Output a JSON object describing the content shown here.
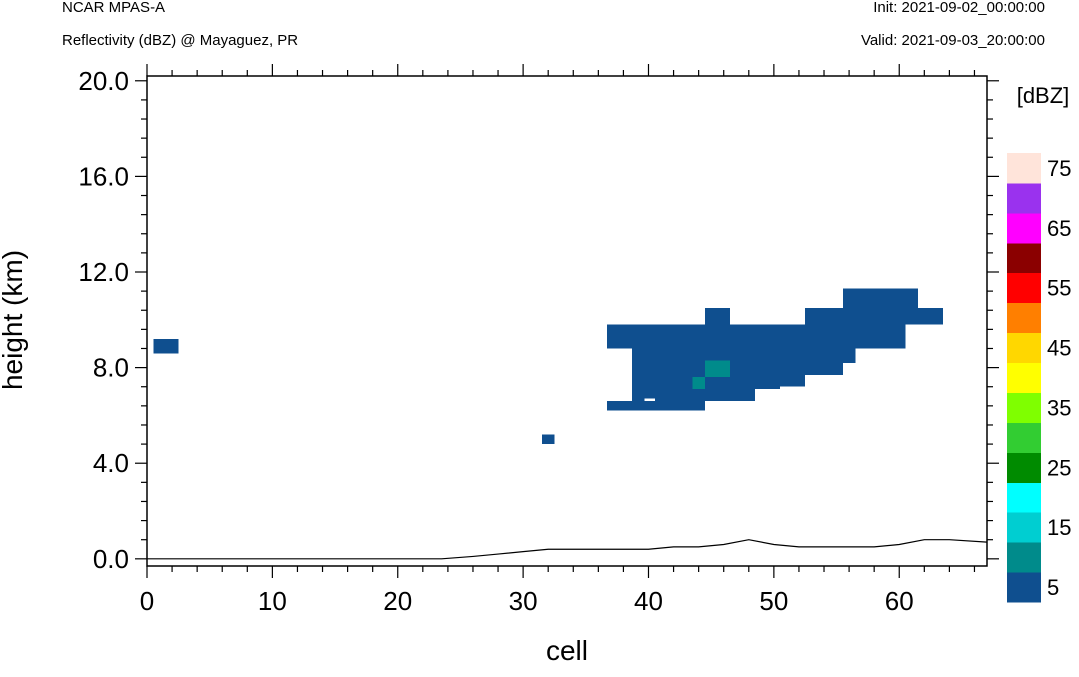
{
  "header": {
    "model": "NCAR MPAS-A",
    "field": "Reflectivity (dBZ) @ Mayaguez, PR",
    "init": "Init: 2021-09-02_00:00:00",
    "valid": "Valid: 2021-09-03_20:00:00"
  },
  "chart_data": {
    "type": "heatmap",
    "xlabel": "cell",
    "ylabel": "height (km)",
    "xlim": [
      0,
      67
    ],
    "ylim": [
      -0.3,
      20.2
    ],
    "xticks": [
      "0",
      "10",
      "20",
      "30",
      "40",
      "50",
      "60"
    ],
    "yticks": [
      "0.0",
      "4.0",
      "8.0",
      "12.0",
      "16.0",
      "20.0"
    ],
    "colorbar": {
      "unit": "[dBZ]",
      "labels": [
        "5",
        "15",
        "25",
        "35",
        "45",
        "55",
        "65",
        "75"
      ],
      "colors": [
        "#0f4f8f",
        "#008b8b",
        "#00ced1",
        "#00ffff",
        "#008b00",
        "#32cd32",
        "#7fff00",
        "#ffff00",
        "#ffd700",
        "#ff7f00",
        "#ff0000",
        "#8b0000",
        "#ff00ff",
        "#9a32ee",
        "#ffe4da"
      ]
    },
    "cells": [
      {
        "x0": 0.5,
        "x1": 2.5,
        "y0": 8.6,
        "y1": 9.2,
        "dbz": 5
      },
      {
        "x0": 31.5,
        "x1": 32.5,
        "y0": 4.8,
        "y1": 5.2,
        "dbz": 5
      },
      {
        "x0": 36.7,
        "x1": 40.5,
        "y0": 6.2,
        "y1": 6.6,
        "dbz": 5
      },
      {
        "x0": 40.5,
        "x1": 44.5,
        "y0": 6.2,
        "y1": 6.7,
        "dbz": 5
      },
      {
        "x0": 38.7,
        "x1": 39.7,
        "y0": 6.6,
        "y1": 8.8,
        "dbz": 5
      },
      {
        "x0": 36.7,
        "x1": 56.5,
        "y0": 8.8,
        "y1": 9.8,
        "dbz": 5
      },
      {
        "x0": 44.5,
        "x1": 46.5,
        "y0": 9.8,
        "y1": 10.5,
        "dbz": 5
      },
      {
        "x0": 52.5,
        "x1": 63.5,
        "y0": 9.8,
        "y1": 10.5,
        "dbz": 5
      },
      {
        "x0": 55.5,
        "x1": 61.5,
        "y0": 10.5,
        "y1": 11.3,
        "dbz": 5
      },
      {
        "x0": 57.5,
        "x1": 60.5,
        "y0": 8.8,
        "y1": 9.8,
        "dbz": 5
      },
      {
        "x0": 54.5,
        "x1": 56.5,
        "y0": 8.2,
        "y1": 8.8,
        "dbz": 5
      },
      {
        "x0": 52.5,
        "x1": 55.5,
        "y0": 7.7,
        "y1": 8.3,
        "dbz": 5
      },
      {
        "x0": 50.5,
        "x1": 52.5,
        "y0": 7.2,
        "y1": 7.7,
        "dbz": 5
      },
      {
        "x0": 44.5,
        "x1": 47.5,
        "y0": 6.6,
        "y1": 7.2,
        "dbz": 5
      },
      {
        "x0": 39.7,
        "x1": 41.5,
        "y0": 7.1,
        "y1": 7.6,
        "dbz": 5
      },
      {
        "x0": 39.7,
        "x1": 44.5,
        "y0": 7.6,
        "y1": 8.8,
        "dbz": 8
      },
      {
        "x0": 41.5,
        "x1": 44.5,
        "y0": 8.8,
        "y1": 9.3,
        "dbz": 8
      },
      {
        "x0": 44.5,
        "x1": 46.5,
        "y0": 8.3,
        "y1": 9.3,
        "dbz": 8
      },
      {
        "x0": 46.5,
        "x1": 48.5,
        "y0": 7.1,
        "y1": 8.8,
        "dbz": 8
      },
      {
        "x0": 48.5,
        "x1": 50.5,
        "y0": 7.1,
        "y1": 8.8,
        "dbz": 8
      },
      {
        "x0": 50.5,
        "x1": 54.5,
        "y0": 7.7,
        "y1": 8.8,
        "dbz": 8
      },
      {
        "x0": 50.5,
        "x1": 55.5,
        "y0": 8.8,
        "y1": 9.3,
        "dbz": 8
      },
      {
        "x0": 55.5,
        "x1": 57.5,
        "y0": 8.8,
        "y1": 9.8,
        "dbz": 8
      },
      {
        "x0": 39.7,
        "x1": 44.5,
        "y0": 6.7,
        "y1": 7.1,
        "dbz": 8
      },
      {
        "x0": 41.5,
        "x1": 43.5,
        "y0": 7.1,
        "y1": 7.6,
        "dbz": 8
      },
      {
        "x0": 44.5,
        "x1": 46.5,
        "y0": 7.2,
        "y1": 7.6,
        "dbz": 8
      },
      {
        "x0": 47.5,
        "x1": 48.5,
        "y0": 6.6,
        "y1": 7.1,
        "dbz": 8
      },
      {
        "x0": 44.5,
        "x1": 46.5,
        "y0": 7.6,
        "y1": 8.3,
        "dbz": 13
      },
      {
        "x0": 43.5,
        "x1": 44.5,
        "y0": 7.1,
        "y1": 7.6,
        "dbz": 13
      }
    ],
    "terrain": [
      [
        0,
        0.0
      ],
      [
        23.5,
        0.0
      ],
      [
        26,
        0.1
      ],
      [
        28,
        0.2
      ],
      [
        30,
        0.3
      ],
      [
        32,
        0.4
      ],
      [
        34,
        0.4
      ],
      [
        36,
        0.4
      ],
      [
        38,
        0.4
      ],
      [
        40,
        0.4
      ],
      [
        42,
        0.5
      ],
      [
        44,
        0.5
      ],
      [
        46,
        0.6
      ],
      [
        48,
        0.8
      ],
      [
        50,
        0.6
      ],
      [
        52,
        0.5
      ],
      [
        54,
        0.5
      ],
      [
        56,
        0.5
      ],
      [
        58,
        0.5
      ],
      [
        60,
        0.6
      ],
      [
        62,
        0.8
      ],
      [
        64,
        0.8
      ],
      [
        67,
        0.7
      ]
    ]
  }
}
